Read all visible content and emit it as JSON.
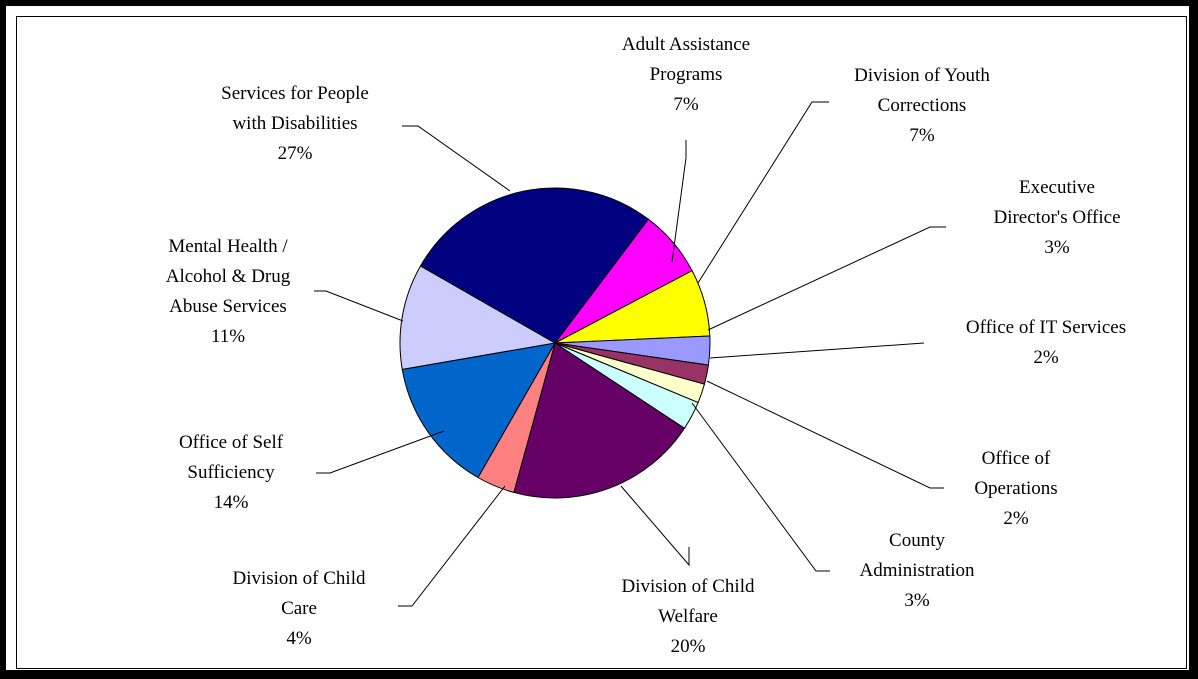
{
  "chart_data": {
    "type": "pie",
    "slices": [
      {
        "label_lines": [
          "Adult Assistance",
          "Programs"
        ],
        "pct_label": "7%",
        "value": 7,
        "color": "#ff00ff"
      },
      {
        "label_lines": [
          "Division of Youth",
          "Corrections"
        ],
        "pct_label": "7%",
        "value": 7,
        "color": "#ffff00"
      },
      {
        "label_lines": [
          "Executive",
          "Director's Office"
        ],
        "pct_label": "3%",
        "value": 3,
        "color": "#9999ff"
      },
      {
        "label_lines": [
          "Office of IT Services"
        ],
        "pct_label": "2%",
        "value": 2,
        "color": "#993366"
      },
      {
        "label_lines": [
          "Office of",
          "Operations"
        ],
        "pct_label": "2%",
        "value": 2,
        "color": "#ffffcc"
      },
      {
        "label_lines": [
          "County",
          "Administration"
        ],
        "pct_label": "3%",
        "value": 3,
        "color": "#ccffff"
      },
      {
        "label_lines": [
          "Division of Child",
          "Welfare"
        ],
        "pct_label": "20%",
        "value": 20,
        "color": "#660066"
      },
      {
        "label_lines": [
          "Division of Child",
          "Care"
        ],
        "pct_label": "4%",
        "value": 4,
        "color": "#ff8080"
      },
      {
        "label_lines": [
          "Office of Self",
          "Sufficiency"
        ],
        "pct_label": "14%",
        "value": 14,
        "color": "#0066cc"
      },
      {
        "label_lines": [
          "Mental Health /",
          "Alcohol & Drug",
          "Abuse Services"
        ],
        "pct_label": "11%",
        "value": 11,
        "color": "#ccccff"
      },
      {
        "label_lines": [
          "Services for People",
          "with Disabilities"
        ],
        "pct_label": "27%",
        "value": 27,
        "color": "#000080"
      }
    ]
  }
}
